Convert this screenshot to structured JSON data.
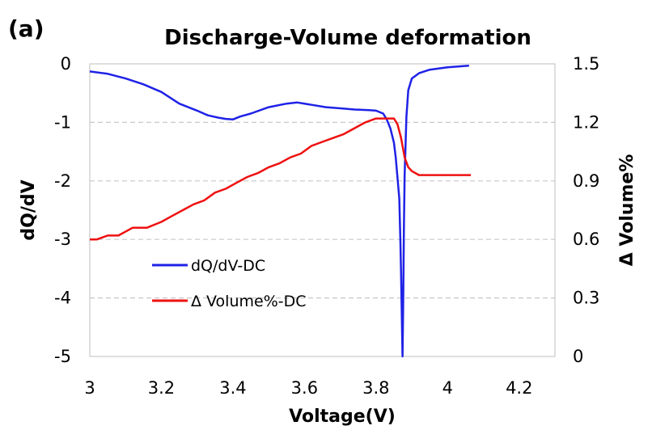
{
  "panel_label": "(a)",
  "chart_data": {
    "type": "line",
    "title": "Discharge-Volume deformation",
    "xlabel": "Voltage(V)",
    "ylabel": "dQ/dV",
    "y2label": "Δ Volume%",
    "xlim": [
      3,
      4.3
    ],
    "ylim": [
      -5,
      0
    ],
    "y2lim": [
      0,
      1.5
    ],
    "x_ticks": [
      "3",
      "3.2",
      "3.4",
      "3.6",
      "3.8",
      "4",
      "4.2"
    ],
    "y_ticks": [
      "0",
      "-1",
      "-2",
      "-3",
      "-4",
      "-5"
    ],
    "y2_ticks": [
      "1.5",
      "1.2",
      "0.9",
      "0.6",
      "0.3",
      "0"
    ],
    "grid": "horizontal dashed",
    "legend_position": "lower-left",
    "series": [
      {
        "name": "dQ/dV-DC",
        "axis": "left",
        "color": "#1f22e6",
        "x": [
          3.0,
          3.05,
          3.1,
          3.15,
          3.2,
          3.25,
          3.3,
          3.33,
          3.36,
          3.38,
          3.4,
          3.42,
          3.45,
          3.5,
          3.55,
          3.58,
          3.62,
          3.66,
          3.7,
          3.74,
          3.78,
          3.8,
          3.82,
          3.83,
          3.84,
          3.85,
          3.855,
          3.86,
          3.865,
          3.868,
          3.87,
          3.872,
          3.874,
          3.876,
          3.878,
          3.88,
          3.885,
          3.89,
          3.9,
          3.92,
          3.95,
          4.0,
          4.06
        ],
        "y": [
          -0.13,
          -0.17,
          -0.25,
          -0.35,
          -0.48,
          -0.68,
          -0.8,
          -0.88,
          -0.92,
          -0.94,
          -0.95,
          -0.9,
          -0.85,
          -0.74,
          -0.68,
          -0.66,
          -0.7,
          -0.74,
          -0.76,
          -0.78,
          -0.79,
          -0.8,
          -0.85,
          -0.95,
          -1.1,
          -1.35,
          -1.6,
          -1.95,
          -2.3,
          -3.0,
          -3.6,
          -4.3,
          -5.0,
          -4.0,
          -2.8,
          -1.9,
          -0.9,
          -0.45,
          -0.25,
          -0.16,
          -0.1,
          -0.06,
          -0.03
        ]
      },
      {
        "name": "Δ Volume%-DC",
        "axis": "right",
        "color": "#ee1111",
        "x": [
          3.0,
          3.02,
          3.05,
          3.08,
          3.12,
          3.16,
          3.2,
          3.23,
          3.26,
          3.29,
          3.32,
          3.35,
          3.38,
          3.41,
          3.44,
          3.47,
          3.5,
          3.53,
          3.56,
          3.59,
          3.62,
          3.65,
          3.68,
          3.71,
          3.74,
          3.77,
          3.8,
          3.82,
          3.84,
          3.85,
          3.86,
          3.87,
          3.88,
          3.89,
          3.9,
          3.92,
          3.95,
          4.0,
          4.065
        ],
        "y": [
          0.6,
          0.6,
          0.62,
          0.62,
          0.66,
          0.66,
          0.69,
          0.72,
          0.75,
          0.78,
          0.8,
          0.84,
          0.86,
          0.89,
          0.92,
          0.94,
          0.97,
          0.99,
          1.02,
          1.04,
          1.08,
          1.1,
          1.12,
          1.14,
          1.17,
          1.2,
          1.22,
          1.22,
          1.22,
          1.22,
          1.19,
          1.12,
          1.02,
          0.97,
          0.95,
          0.93,
          0.93,
          0.93,
          0.93
        ]
      }
    ]
  }
}
